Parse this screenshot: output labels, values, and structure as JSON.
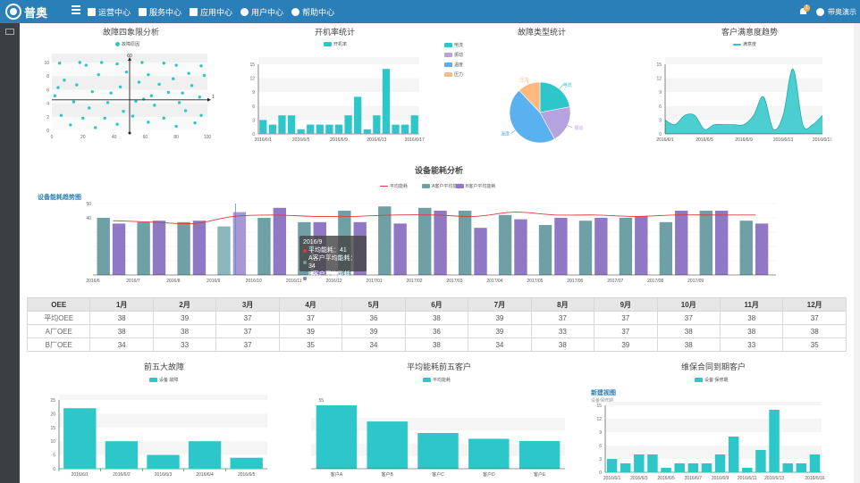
{
  "app": {
    "logo_text": "普奥",
    "user_name": "带奥演示",
    "notification_count": "1"
  },
  "nav": [
    {
      "label": "运营中心",
      "icon": "dashboard-icon"
    },
    {
      "label": "服务中心",
      "icon": "shield-icon"
    },
    {
      "label": "应用中心",
      "icon": "grid-icon"
    },
    {
      "label": "用户中心",
      "icon": "user-icon"
    },
    {
      "label": "帮助中心",
      "icon": "help-icon"
    }
  ],
  "colors": {
    "topbar": "#2b7fb8",
    "teal": "#2ec7c9",
    "purple": "#9079c4",
    "slate": "#6fa0a6",
    "blue": "#5ab1ef",
    "orange": "#ffb980",
    "red": "#e0393e",
    "lilac": "#b6a2de"
  },
  "charts": {
    "quadrant": {
      "title": "故障四象限分析",
      "legend": "故障原因",
      "axis_y_label": "60",
      "axis_x_label": "1"
    },
    "uptime": {
      "title": "开机率统计",
      "legend": "开机率"
    },
    "fault_type": {
      "title": "故障类型统计",
      "legend": [
        "电流",
        "振动",
        "温度",
        "压力"
      ]
    },
    "satisfaction": {
      "title": "客户满意度趋势",
      "legend": "满意度"
    },
    "energy": {
      "title": "设备能耗分析",
      "subtitle": "设备能耗趋势图",
      "legend": [
        "平均能耗",
        "A客户平均能耗",
        "B客户平均能耗"
      ],
      "tooltip": {
        "title": "2016/9",
        "rows": [
          "平均能耗：41",
          "A客户平均能耗：34",
          "B客户平均能耗：44"
        ]
      }
    },
    "top5_faults": {
      "title": "前五大故障",
      "legend": "设备 故障"
    },
    "top5_energy": {
      "title": "平均能耗前五客户",
      "legend": "平均能耗"
    },
    "warranty": {
      "title": "维保合同到期客户",
      "legend": "设备 保修期",
      "subhead": "新建视图",
      "subhead2": "设备保修期"
    }
  },
  "chart_data": [
    {
      "type": "scatter",
      "title": "故障四象限分析",
      "x_ticks": [
        "0",
        "20",
        "40",
        "60",
        "80",
        "100"
      ],
      "y_ticks": [
        "0",
        "2",
        "4",
        "6",
        "8",
        "10"
      ],
      "xlim": [
        0,
        100
      ],
      "ylim": [
        0,
        10
      ],
      "points": [
        [
          5,
          9.9
        ],
        [
          18,
          10
        ],
        [
          22,
          9.6
        ],
        [
          32,
          10
        ],
        [
          42,
          9.8
        ],
        [
          58,
          10
        ],
        [
          72,
          9.9
        ],
        [
          96,
          9.5
        ],
        [
          80,
          9.6
        ],
        [
          8,
          7.4
        ],
        [
          30,
          8.2
        ],
        [
          48,
          8.6
        ],
        [
          62,
          8.2
        ],
        [
          78,
          7.6
        ],
        [
          88,
          8.4
        ],
        [
          98,
          8.1
        ],
        [
          4,
          6.3
        ],
        [
          16,
          6.7
        ],
        [
          44,
          6.4
        ],
        [
          56,
          7.1
        ],
        [
          69,
          6.8
        ],
        [
          90,
          6.6
        ],
        [
          2,
          5.1
        ],
        [
          26,
          5.7
        ],
        [
          38,
          5.5
        ],
        [
          64,
          5.1
        ],
        [
          75,
          5.6
        ],
        [
          95,
          4.9
        ],
        [
          14,
          4.2
        ],
        [
          36,
          4.1
        ],
        [
          59,
          4.6
        ],
        [
          82,
          4.1
        ],
        [
          24,
          3.3
        ],
        [
          46,
          2.8
        ],
        [
          66,
          3.7
        ],
        [
          86,
          2.9
        ],
        [
          6,
          2.2
        ],
        [
          34,
          1.8
        ],
        [
          52,
          2.1
        ],
        [
          72,
          1.8
        ],
        [
          96,
          2.2
        ],
        [
          12,
          0.8
        ],
        [
          42,
          0.9
        ],
        [
          62,
          1.2
        ],
        [
          92,
          1.1
        ],
        [
          28,
          0.4
        ],
        [
          80,
          0.6
        ],
        [
          20,
          1.8
        ],
        [
          84,
          5.5
        ],
        [
          54,
          4.3
        ]
      ]
    },
    {
      "type": "bar",
      "title": "开机率统计",
      "categories": [
        "2016/6/1",
        "2016/6/2",
        "2016/6/3",
        "2016/6/4",
        "2016/6/5",
        "2016/6/6",
        "2016/6/7",
        "2016/6/8",
        "2016/6/9",
        "2016/6/10",
        "2016/6/11",
        "2016/6/12",
        "2016/6/13",
        "2016/6/14",
        "2016/6/15",
        "2016/6/16",
        "2016/6/17"
      ],
      "x_tick_labels": [
        "2016/6/1",
        "2016/6/5",
        "2016/6/9",
        "2016/6/13",
        "2016/6/17"
      ],
      "values": [
        3,
        2,
        4,
        4,
        1,
        2,
        2,
        2,
        2,
        4,
        8,
        1,
        4,
        14,
        2,
        2,
        4
      ],
      "ylim": [
        0,
        15
      ],
      "y_ticks": [
        "0",
        "3",
        "6",
        "9",
        "12",
        "15"
      ]
    },
    {
      "type": "pie",
      "title": "故障类型统计",
      "labels": [
        "电流",
        "振动",
        "温度",
        "压力"
      ],
      "values": [
        22,
        20,
        46,
        12
      ]
    },
    {
      "type": "area",
      "title": "客户满意度趋势",
      "categories": [
        "2016/6/1",
        "2016/6/2",
        "2016/6/3",
        "2016/6/4",
        "2016/6/5",
        "2016/6/6",
        "2016/6/7",
        "2016/6/8",
        "2016/6/9",
        "2016/6/10",
        "2016/6/11",
        "2016/6/12",
        "2016/6/13",
        "2016/6/14",
        "2016/6/15",
        "2016/6/16",
        "2016/6/17"
      ],
      "x_tick_labels": [
        "2016/6/1",
        "2016/6/5",
        "2016/6/9",
        "2016/6/13",
        "2016/6/17"
      ],
      "values": [
        3,
        2,
        4,
        4,
        1,
        2,
        2,
        2,
        2,
        4,
        8,
        1,
        4,
        14,
        2,
        2,
        4
      ],
      "ylim": [
        0,
        15
      ],
      "y_ticks": [
        "0",
        "3",
        "6",
        "9",
        "12",
        "15"
      ]
    },
    {
      "type": "bar",
      "title": "设备能耗分析",
      "categories": [
        "2016/6",
        "2016/7",
        "2016/8",
        "2016/9",
        "2016/10",
        "2016/11",
        "2016/12",
        "2017/01",
        "2017/02",
        "2017/03",
        "2017/04",
        "2017/05",
        "2017/06",
        "2017/07",
        "2017/08",
        "2017/09"
      ],
      "ylim": [
        0,
        50
      ],
      "y_ticks": [
        "0",
        "10",
        "20",
        "30",
        "40",
        "50"
      ],
      "series": [
        {
          "name": "A客户平均能耗",
          "values": [
            40,
            37,
            37,
            34,
            40,
            37,
            45,
            48,
            47,
            45,
            42,
            35,
            38,
            40,
            37,
            45
          ]
        },
        {
          "name": "B客户平均能耗",
          "values": [
            36,
            38,
            38,
            44,
            47,
            37,
            37,
            36,
            45,
            33,
            39,
            40,
            40,
            41,
            45,
            45
          ]
        },
        {
          "name": "平均能耗",
          "values": [
            38,
            37,
            36,
            41,
            42,
            41,
            41,
            42,
            42,
            41,
            44,
            42,
            42,
            41,
            42,
            42
          ]
        }
      ],
      "extra_right": [
        38,
        36
      ]
    },
    {
      "type": "bar",
      "title": "前五大故障",
      "categories": [
        "2016/6/1",
        "2016/6/2",
        "2016/6/3",
        "2016/6/4",
        "2016/6/5"
      ],
      "values": [
        22,
        10,
        5,
        10,
        4
      ],
      "ylim": [
        0,
        25
      ],
      "y_ticks": [
        "0",
        "5",
        "10",
        "15",
        "20",
        "25"
      ]
    },
    {
      "type": "bar",
      "title": "平均能耗前五客户",
      "categories": [
        "客户A",
        "客户B",
        "客户C",
        "客户D",
        "客户E"
      ],
      "values": [
        55,
        41,
        31,
        26,
        24
      ],
      "ylim": [
        0,
        55
      ],
      "y_ticks": [
        "55"
      ]
    },
    {
      "type": "bar",
      "title": "维保合同到期客户",
      "categories": [
        "2016/6/1",
        "2016/6/2",
        "2016/6/3",
        "2016/6/4",
        "2016/6/5",
        "2016/6/6",
        "2016/6/7",
        "2016/6/8",
        "2016/6/9",
        "2016/6/10",
        "2016/6/11",
        "2016/6/12",
        "2016/6/13",
        "2016/6/14",
        "2016/6/15",
        "2016/6/16"
      ],
      "x_tick_labels": [
        "2016/6/1",
        "2016/6/3",
        "2016/6/5",
        "2016/6/7",
        "2016/6/9",
        "2016/6/11",
        "2016/6/13",
        "2016/6/16"
      ],
      "values": [
        3,
        2,
        4,
        4,
        1,
        2,
        2,
        2,
        4,
        8,
        1,
        5,
        14,
        2,
        2,
        4
      ],
      "ylim": [
        0,
        15
      ],
      "y_ticks": [
        "0",
        "3",
        "6",
        "9",
        "12",
        "15"
      ]
    }
  ],
  "oee_table": {
    "headers": [
      "OEE",
      "1月",
      "2月",
      "3月",
      "4月",
      "5月",
      "6月",
      "7月",
      "8月",
      "9月",
      "10月",
      "11月",
      "12月"
    ],
    "rows": [
      [
        "平均OEE",
        "38",
        "39",
        "37",
        "37",
        "36",
        "38",
        "39",
        "37",
        "37",
        "37",
        "38",
        "37"
      ],
      [
        "A厂OEE",
        "38",
        "38",
        "37",
        "39",
        "39",
        "36",
        "39",
        "33",
        "37",
        "38",
        "38",
        "38"
      ],
      [
        "B厂OEE",
        "34",
        "33",
        "37",
        "35",
        "34",
        "38",
        "34",
        "38",
        "39",
        "38",
        "33",
        "35"
      ]
    ]
  }
}
